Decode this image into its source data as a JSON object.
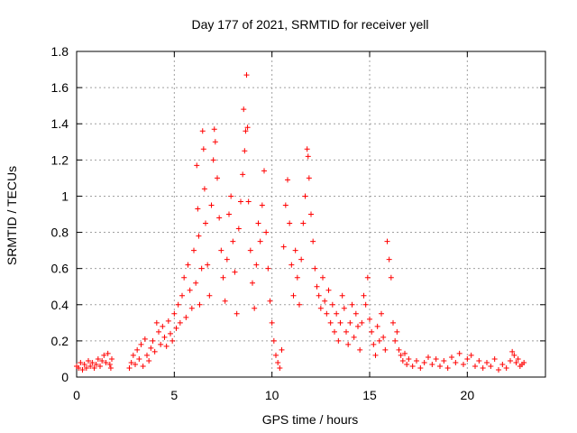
{
  "chart_data": {
    "type": "scatter",
    "title": "Day 177 of 2021, SRMTID for receiver yell",
    "xlabel": "GPS time / hours",
    "ylabel": "SRMTID / TECUs",
    "xlim": [
      0,
      24
    ],
    "ylim": [
      0,
      1.8
    ],
    "x_ticks": [
      "0",
      "5",
      "10",
      "15",
      "20"
    ],
    "x_tick_values": [
      0,
      5,
      10,
      15,
      20
    ],
    "y_ticks": [
      "0",
      "0.2",
      "0.4",
      "0.6",
      "0.8",
      "1",
      "1.2",
      "1.4",
      "1.6",
      "1.8"
    ],
    "y_tick_values": [
      0,
      0.2,
      0.4,
      0.6,
      0.8,
      1.0,
      1.2,
      1.4,
      1.6,
      1.8
    ],
    "grid": true,
    "marker": "+",
    "color": "#ff0000",
    "series": [
      {
        "name": "SRMTID",
        "points": [
          [
            0.0,
            0.06
          ],
          [
            0.1,
            0.05
          ],
          [
            0.2,
            0.08
          ],
          [
            0.3,
            0.04
          ],
          [
            0.4,
            0.07
          ],
          [
            0.5,
            0.05
          ],
          [
            0.6,
            0.09
          ],
          [
            0.7,
            0.06
          ],
          [
            0.8,
            0.08
          ],
          [
            0.9,
            0.05
          ],
          [
            1.0,
            0.07
          ],
          [
            1.1,
            0.1
          ],
          [
            1.2,
            0.06
          ],
          [
            1.3,
            0.09
          ],
          [
            1.4,
            0.12
          ],
          [
            1.5,
            0.08
          ],
          [
            1.6,
            0.13
          ],
          [
            1.7,
            0.07
          ],
          [
            1.75,
            0.05
          ],
          [
            1.8,
            0.1
          ],
          [
            2.7,
            0.05
          ],
          [
            2.8,
            0.08
          ],
          [
            2.9,
            0.12
          ],
          [
            3.0,
            0.07
          ],
          [
            3.1,
            0.15
          ],
          [
            3.2,
            0.1
          ],
          [
            3.3,
            0.18
          ],
          [
            3.4,
            0.06
          ],
          [
            3.5,
            0.21
          ],
          [
            3.6,
            0.12
          ],
          [
            3.7,
            0.09
          ],
          [
            3.8,
            0.16
          ],
          [
            3.9,
            0.2
          ],
          [
            4.0,
            0.14
          ],
          [
            4.1,
            0.3
          ],
          [
            4.2,
            0.25
          ],
          [
            4.3,
            0.18
          ],
          [
            4.4,
            0.28
          ],
          [
            4.5,
            0.22
          ],
          [
            4.6,
            0.17
          ],
          [
            4.7,
            0.31
          ],
          [
            4.8,
            0.24
          ],
          [
            4.9,
            0.2
          ],
          [
            5.0,
            0.35
          ],
          [
            5.1,
            0.27
          ],
          [
            5.2,
            0.4
          ],
          [
            5.3,
            0.3
          ],
          [
            5.4,
            0.45
          ],
          [
            5.5,
            0.55
          ],
          [
            5.6,
            0.33
          ],
          [
            5.7,
            0.62
          ],
          [
            5.8,
            0.48
          ],
          [
            5.9,
            0.38
          ],
          [
            6.0,
            0.7
          ],
          [
            6.1,
            0.52
          ],
          [
            6.15,
            1.17
          ],
          [
            6.2,
            0.93
          ],
          [
            6.25,
            0.78
          ],
          [
            6.3,
            0.4
          ],
          [
            6.4,
            0.6
          ],
          [
            6.45,
            1.36
          ],
          [
            6.5,
            1.26
          ],
          [
            6.55,
            1.04
          ],
          [
            6.6,
            0.85
          ],
          [
            6.7,
            0.62
          ],
          [
            6.8,
            0.45
          ],
          [
            6.9,
            0.95
          ],
          [
            7.0,
            1.2
          ],
          [
            7.05,
            1.37
          ],
          [
            7.1,
            1.3
          ],
          [
            7.2,
            1.1
          ],
          [
            7.3,
            0.88
          ],
          [
            7.4,
            0.7
          ],
          [
            7.5,
            0.55
          ],
          [
            7.6,
            0.42
          ],
          [
            7.7,
            0.65
          ],
          [
            7.8,
            0.9
          ],
          [
            7.9,
            1.0
          ],
          [
            8.0,
            0.75
          ],
          [
            8.1,
            0.58
          ],
          [
            8.2,
            0.35
          ],
          [
            8.3,
            0.82
          ],
          [
            8.4,
            0.97
          ],
          [
            8.5,
            1.12
          ],
          [
            8.55,
            1.48
          ],
          [
            8.6,
            1.25
          ],
          [
            8.65,
            1.36
          ],
          [
            8.7,
            1.67
          ],
          [
            8.75,
            1.38
          ],
          [
            8.8,
            0.97
          ],
          [
            8.9,
            0.7
          ],
          [
            9.0,
            0.52
          ],
          [
            9.1,
            0.38
          ],
          [
            9.2,
            0.62
          ],
          [
            9.3,
            0.85
          ],
          [
            9.4,
            0.75
          ],
          [
            9.5,
            0.95
          ],
          [
            9.6,
            1.14
          ],
          [
            9.7,
            0.8
          ],
          [
            9.8,
            0.6
          ],
          [
            9.9,
            0.42
          ],
          [
            10.0,
            0.3
          ],
          [
            10.1,
            0.2
          ],
          [
            10.2,
            0.12
          ],
          [
            10.3,
            0.08
          ],
          [
            10.4,
            0.05
          ],
          [
            10.5,
            0.15
          ],
          [
            10.6,
            0.72
          ],
          [
            10.7,
            0.95
          ],
          [
            10.8,
            1.09
          ],
          [
            10.9,
            0.85
          ],
          [
            11.0,
            0.62
          ],
          [
            11.1,
            0.45
          ],
          [
            11.2,
            0.7
          ],
          [
            11.3,
            0.55
          ],
          [
            11.4,
            0.4
          ],
          [
            11.5,
            0.65
          ],
          [
            11.6,
            0.85
          ],
          [
            11.7,
            1.0
          ],
          [
            11.8,
            1.26
          ],
          [
            11.85,
            1.22
          ],
          [
            11.9,
            1.1
          ],
          [
            12.0,
            0.9
          ],
          [
            12.1,
            0.75
          ],
          [
            12.2,
            0.6
          ],
          [
            12.3,
            0.5
          ],
          [
            12.4,
            0.45
          ],
          [
            12.5,
            0.38
          ],
          [
            12.6,
            0.55
          ],
          [
            12.7,
            0.42
          ],
          [
            12.8,
            0.35
          ],
          [
            12.9,
            0.48
          ],
          [
            13.0,
            0.3
          ],
          [
            13.1,
            0.4
          ],
          [
            13.2,
            0.25
          ],
          [
            13.3,
            0.35
          ],
          [
            13.4,
            0.2
          ],
          [
            13.5,
            0.3
          ],
          [
            13.6,
            0.45
          ],
          [
            13.7,
            0.38
          ],
          [
            13.8,
            0.25
          ],
          [
            13.9,
            0.18
          ],
          [
            14.0,
            0.3
          ],
          [
            14.1,
            0.4
          ],
          [
            14.2,
            0.22
          ],
          [
            14.3,
            0.35
          ],
          [
            14.4,
            0.28
          ],
          [
            14.5,
            0.15
          ],
          [
            14.6,
            0.3
          ],
          [
            14.7,
            0.45
          ],
          [
            14.8,
            0.4
          ],
          [
            14.9,
            0.55
          ],
          [
            15.0,
            0.32
          ],
          [
            15.1,
            0.25
          ],
          [
            15.2,
            0.18
          ],
          [
            15.3,
            0.12
          ],
          [
            15.4,
            0.28
          ],
          [
            15.5,
            0.2
          ],
          [
            15.6,
            0.35
          ],
          [
            15.7,
            0.22
          ],
          [
            15.8,
            0.15
          ],
          [
            15.9,
            0.75
          ],
          [
            16.0,
            0.65
          ],
          [
            16.1,
            0.55
          ],
          [
            16.2,
            0.3
          ],
          [
            16.3,
            0.2
          ],
          [
            16.4,
            0.25
          ],
          [
            16.5,
            0.15
          ],
          [
            16.6,
            0.12
          ],
          [
            16.7,
            0.09
          ],
          [
            16.8,
            0.13
          ],
          [
            16.9,
            0.07
          ],
          [
            17.0,
            0.1
          ],
          [
            17.2,
            0.06
          ],
          [
            17.4,
            0.09
          ],
          [
            17.6,
            0.05
          ],
          [
            17.8,
            0.08
          ],
          [
            18.0,
            0.11
          ],
          [
            18.2,
            0.07
          ],
          [
            18.4,
            0.1
          ],
          [
            18.6,
            0.06
          ],
          [
            18.8,
            0.09
          ],
          [
            19.0,
            0.05
          ],
          [
            19.2,
            0.11
          ],
          [
            19.4,
            0.08
          ],
          [
            19.6,
            0.13
          ],
          [
            19.8,
            0.07
          ],
          [
            20.0,
            0.1
          ],
          [
            20.2,
            0.12
          ],
          [
            20.4,
            0.06
          ],
          [
            20.6,
            0.09
          ],
          [
            20.8,
            0.05
          ],
          [
            21.0,
            0.08
          ],
          [
            21.2,
            0.06
          ],
          [
            21.4,
            0.1
          ],
          [
            21.6,
            0.04
          ],
          [
            21.8,
            0.07
          ],
          [
            22.0,
            0.05
          ],
          [
            22.2,
            0.09
          ],
          [
            22.3,
            0.14
          ],
          [
            22.4,
            0.12
          ],
          [
            22.5,
            0.08
          ],
          [
            22.6,
            0.1
          ],
          [
            22.7,
            0.06
          ],
          [
            22.8,
            0.07
          ],
          [
            22.9,
            0.08
          ]
        ]
      }
    ]
  }
}
